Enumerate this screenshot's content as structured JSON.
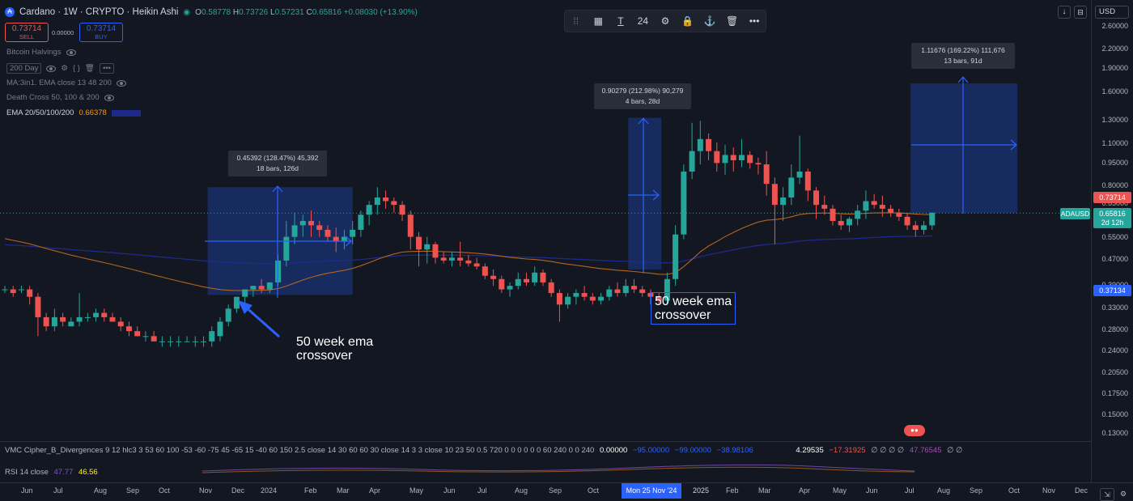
{
  "header": {
    "symbol_title": "Cardano · 1W · CRYPTO · Heikin Ashi",
    "logo_letter": "₳",
    "ohlc": {
      "o": "0.58778",
      "h": "0.73726",
      "l": "0.57231",
      "c": "0.65816",
      "change": "+0.08030 (+13.90%)"
    }
  },
  "trade": {
    "sell_price": "0.73714",
    "sell_label": "SELL",
    "spread": "0.00000",
    "buy_price": "0.73714",
    "buy_label": "BUY"
  },
  "indicators": [
    {
      "label": "Bitcoin Halvings"
    },
    {
      "label": "200 Day"
    },
    {
      "label": "MA:3in1. EMA close 13 48 200"
    },
    {
      "label": "Death Cross 50, 100 & 200"
    },
    {
      "label": "EMA 20/50/100/200",
      "value": "0.66378"
    }
  ],
  "toolbar": {
    "font_size": "24"
  },
  "price_axis": {
    "currency": "USD",
    "ticks": [
      "2.60000",
      "2.20000",
      "1.90000",
      "1.60000",
      "1.30000",
      "1.10000",
      "0.95000",
      "0.80000",
      "0.65000",
      "0.55000",
      "0.47000",
      "0.39000",
      "0.33000",
      "0.28000",
      "0.24000",
      "0.20500",
      "0.17500",
      "0.15000",
      "0.13000"
    ],
    "tags": {
      "current": "0.73714",
      "symbol": "ADAUSD",
      "close": "0.65816",
      "countdown": "2d 12h",
      "ema": "0.37134"
    }
  },
  "measurements": [
    {
      "line1": "0.45392 (128.47%) 45,392",
      "line2": "18 bars, 126d"
    },
    {
      "line1": "0.90279 (212.98%) 90,279",
      "line2": "4 bars, 28d"
    },
    {
      "line1": "1.11676 (169.22%) 111,676",
      "line2": "13 bars, 91d"
    }
  ],
  "notes": [
    {
      "text1": "50 week ema",
      "text2": "crossover"
    },
    {
      "text1": "50 week ema",
      "text2": "crossover"
    }
  ],
  "oscillator": {
    "vmc": "VMC Cipher_B_Divergences 9 12 hlc3 3 53 60 100 -53 -60 -75 45 -65 15 -40 60 150 2.5 close 14 30 60 60 30 close 14 3 3 close 10 23 50 0.5 720 0 0 0 0 0 0 60 240 0 0 240",
    "vmc_values": [
      "0.00000",
      "−95.00000",
      "−99.00000",
      "−38.98106",
      "4.29535",
      "−17.31925",
      "∅ ∅ ∅ ∅",
      "47.76545",
      "∅ ∅"
    ],
    "rsi": "RSI 14 close",
    "rsi_val1": "47.77",
    "rsi_val2": "46.56"
  },
  "time_axis": {
    "labels": [
      "Jun",
      "Jul",
      "Aug",
      "Sep",
      "Oct",
      "Nov",
      "Dec",
      "2024",
      "Feb",
      "Mar",
      "Apr",
      "May",
      "Jun",
      "Jul",
      "Aug",
      "Sep",
      "Oct",
      "Feb",
      "Mar",
      "Apr",
      "May",
      "Jun",
      "Jul",
      "Aug",
      "Sep",
      "Oct",
      "Nov",
      "Dec"
    ],
    "highlight": "Mon 25 Nov '24",
    "year": "2025"
  },
  "colors": {
    "up": "#26a69a",
    "down": "#ef5350",
    "accent": "#2962ff",
    "ema": "#b5651d",
    "ema2": "#1e2a8a",
    "bg": "#131722"
  },
  "chart_data": {
    "type": "candlestick",
    "scale": "log",
    "ylim": [
      0.12,
      2.7
    ],
    "candles": [
      [
        0.37,
        0.38,
        0.36,
        0.37
      ],
      [
        0.37,
        0.38,
        0.35,
        0.36
      ],
      [
        0.37,
        0.38,
        0.36,
        0.37
      ],
      [
        0.37,
        0.38,
        0.33,
        0.35
      ],
      [
        0.35,
        0.36,
        0.26,
        0.3
      ],
      [
        0.3,
        0.31,
        0.27,
        0.28
      ],
      [
        0.28,
        0.32,
        0.27,
        0.3
      ],
      [
        0.3,
        0.31,
        0.28,
        0.29
      ],
      [
        0.28,
        0.3,
        0.28,
        0.29
      ],
      [
        0.29,
        0.36,
        0.28,
        0.3
      ],
      [
        0.3,
        0.31,
        0.29,
        0.3
      ],
      [
        0.3,
        0.32,
        0.29,
        0.31
      ],
      [
        0.31,
        0.32,
        0.29,
        0.3
      ],
      [
        0.3,
        0.31,
        0.29,
        0.29
      ],
      [
        0.29,
        0.3,
        0.27,
        0.28
      ],
      [
        0.28,
        0.29,
        0.26,
        0.27
      ],
      [
        0.27,
        0.28,
        0.26,
        0.26
      ],
      [
        0.26,
        0.27,
        0.25,
        0.26
      ],
      [
        0.26,
        0.27,
        0.25,
        0.25
      ],
      [
        0.25,
        0.26,
        0.24,
        0.25
      ],
      [
        0.25,
        0.26,
        0.24,
        0.25
      ],
      [
        0.25,
        0.26,
        0.24,
        0.25
      ],
      [
        0.25,
        0.26,
        0.25,
        0.25
      ],
      [
        0.25,
        0.26,
        0.24,
        0.25
      ],
      [
        0.25,
        0.26,
        0.24,
        0.25
      ],
      [
        0.25,
        0.28,
        0.24,
        0.27
      ],
      [
        0.26,
        0.3,
        0.25,
        0.29
      ],
      [
        0.29,
        0.33,
        0.28,
        0.32
      ],
      [
        0.32,
        0.35,
        0.31,
        0.35
      ],
      [
        0.35,
        0.37,
        0.33,
        0.37
      ],
      [
        0.37,
        0.38,
        0.35,
        0.38
      ],
      [
        0.38,
        0.4,
        0.36,
        0.37
      ],
      [
        0.37,
        0.39,
        0.36,
        0.39
      ],
      [
        0.39,
        0.48,
        0.38,
        0.46
      ],
      [
        0.46,
        0.62,
        0.44,
        0.55
      ],
      [
        0.55,
        0.66,
        0.52,
        0.6
      ],
      [
        0.6,
        0.65,
        0.55,
        0.62
      ],
      [
        0.62,
        0.67,
        0.55,
        0.6
      ],
      [
        0.6,
        0.62,
        0.55,
        0.58
      ],
      [
        0.58,
        0.6,
        0.53,
        0.55
      ],
      [
        0.55,
        0.59,
        0.49,
        0.53
      ],
      [
        0.53,
        0.58,
        0.5,
        0.55
      ],
      [
        0.55,
        0.62,
        0.52,
        0.58
      ],
      [
        0.58,
        0.67,
        0.55,
        0.65
      ],
      [
        0.65,
        0.72,
        0.6,
        0.7
      ],
      [
        0.7,
        0.8,
        0.65,
        0.74
      ],
      [
        0.74,
        0.78,
        0.68,
        0.72
      ],
      [
        0.72,
        0.74,
        0.66,
        0.7
      ],
      [
        0.7,
        0.72,
        0.62,
        0.65
      ],
      [
        0.65,
        0.67,
        0.5,
        0.55
      ],
      [
        0.55,
        0.57,
        0.44,
        0.5
      ],
      [
        0.5,
        0.55,
        0.45,
        0.52
      ],
      [
        0.52,
        0.53,
        0.45,
        0.47
      ],
      [
        0.47,
        0.49,
        0.45,
        0.46
      ],
      [
        0.46,
        0.49,
        0.44,
        0.47
      ],
      [
        0.47,
        0.53,
        0.44,
        0.46
      ],
      [
        0.46,
        0.48,
        0.44,
        0.45
      ],
      [
        0.45,
        0.47,
        0.43,
        0.44
      ],
      [
        0.44,
        0.45,
        0.4,
        0.41
      ],
      [
        0.41,
        0.43,
        0.38,
        0.4
      ],
      [
        0.4,
        0.41,
        0.36,
        0.37
      ],
      [
        0.37,
        0.39,
        0.35,
        0.38
      ],
      [
        0.38,
        0.42,
        0.37,
        0.4
      ],
      [
        0.4,
        0.42,
        0.38,
        0.39
      ],
      [
        0.39,
        0.44,
        0.38,
        0.42
      ],
      [
        0.42,
        0.43,
        0.38,
        0.39
      ],
      [
        0.39,
        0.4,
        0.35,
        0.36
      ],
      [
        0.36,
        0.37,
        0.29,
        0.33
      ],
      [
        0.33,
        0.36,
        0.32,
        0.35
      ],
      [
        0.35,
        0.37,
        0.33,
        0.36
      ],
      [
        0.36,
        0.38,
        0.34,
        0.35
      ],
      [
        0.35,
        0.36,
        0.33,
        0.34
      ],
      [
        0.34,
        0.36,
        0.33,
        0.35
      ],
      [
        0.35,
        0.38,
        0.34,
        0.37
      ],
      [
        0.37,
        0.39,
        0.35,
        0.36
      ],
      [
        0.36,
        0.4,
        0.35,
        0.38
      ],
      [
        0.38,
        0.4,
        0.36,
        0.37
      ],
      [
        0.37,
        0.38,
        0.35,
        0.36
      ],
      [
        0.36,
        0.37,
        0.33,
        0.35
      ],
      [
        0.35,
        0.36,
        0.33,
        0.34
      ],
      [
        0.34,
        0.42,
        0.33,
        0.4
      ],
      [
        0.4,
        0.6,
        0.38,
        0.56
      ],
      [
        0.56,
        0.95,
        0.54,
        0.9
      ],
      [
        0.9,
        1.3,
        0.85,
        1.05
      ],
      [
        1.05,
        1.32,
        0.95,
        1.15
      ],
      [
        1.15,
        1.2,
        0.98,
        1.05
      ],
      [
        1.05,
        1.12,
        0.9,
        0.96
      ],
      [
        0.96,
        1.1,
        0.88,
        1.02
      ],
      [
        1.02,
        1.08,
        0.9,
        0.98
      ],
      [
        0.98,
        1.15,
        0.93,
        1.02
      ],
      [
        1.02,
        1.05,
        0.92,
        0.96
      ],
      [
        0.96,
        1.0,
        0.88,
        0.95
      ],
      [
        0.95,
        1.05,
        0.75,
        0.82
      ],
      [
        0.82,
        0.86,
        0.52,
        0.7
      ],
      [
        0.7,
        0.8,
        0.62,
        0.74
      ],
      [
        0.74,
        0.95,
        0.7,
        0.86
      ],
      [
        0.86,
        1.18,
        0.82,
        0.9
      ],
      [
        0.9,
        0.92,
        0.72,
        0.78
      ],
      [
        0.78,
        0.8,
        0.63,
        0.7
      ],
      [
        0.7,
        0.75,
        0.65,
        0.68
      ],
      [
        0.68,
        0.7,
        0.6,
        0.62
      ],
      [
        0.62,
        0.65,
        0.58,
        0.6
      ],
      [
        0.6,
        0.64,
        0.57,
        0.63
      ],
      [
        0.63,
        0.7,
        0.6,
        0.67
      ],
      [
        0.67,
        0.78,
        0.63,
        0.72
      ],
      [
        0.72,
        0.76,
        0.68,
        0.7
      ],
      [
        0.7,
        0.75,
        0.64,
        0.68
      ],
      [
        0.68,
        0.7,
        0.64,
        0.66
      ],
      [
        0.66,
        0.68,
        0.62,
        0.64
      ],
      [
        0.64,
        0.66,
        0.58,
        0.6
      ],
      [
        0.6,
        0.62,
        0.55,
        0.58
      ],
      [
        0.58,
        0.62,
        0.56,
        0.6
      ],
      [
        0.6,
        0.66,
        0.58,
        0.66
      ]
    ]
  }
}
